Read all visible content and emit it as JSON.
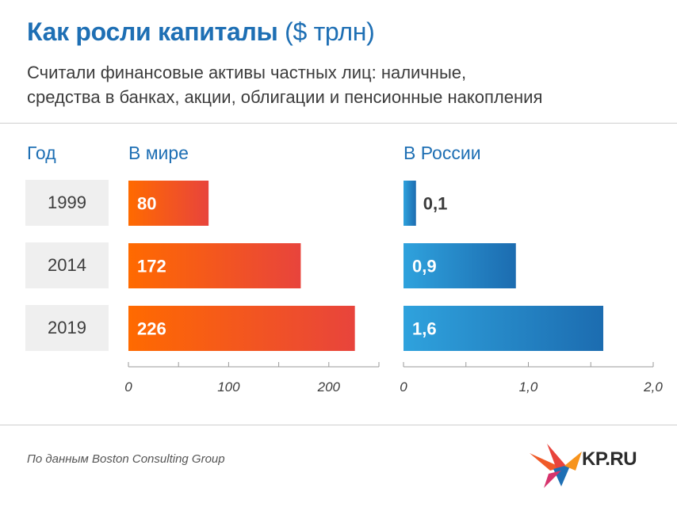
{
  "header": {
    "title": "Как росли капиталы",
    "title_unit": "($ трлн)",
    "subtitle_line1": "Считали финансовые активы частных лиц: наличные,",
    "subtitle_line2": "средства в банках, акции, облигации и пенсионные накопления"
  },
  "columns": {
    "year": "Год",
    "world": "В мире",
    "russia": "В России"
  },
  "chart_data": [
    {
      "type": "bar",
      "orientation": "horizontal",
      "title": "В мире",
      "categories": [
        "1999",
        "2014",
        "2019"
      ],
      "values": [
        80,
        172,
        226
      ],
      "value_labels": [
        "80",
        "172",
        "226"
      ],
      "xlim": [
        0,
        250
      ],
      "ticks": [
        0,
        100,
        200
      ],
      "tick_labels": [
        "0",
        "100",
        "200"
      ],
      "minor_ticks": [
        0,
        50,
        100,
        150,
        200,
        250
      ],
      "grid": false
    },
    {
      "type": "bar",
      "orientation": "horizontal",
      "title": "В России",
      "categories": [
        "1999",
        "2014",
        "2019"
      ],
      "values": [
        0.1,
        0.9,
        1.6
      ],
      "value_labels": [
        "0,1",
        "0,9",
        "1,6"
      ],
      "xlim": [
        0,
        2.0
      ],
      "ticks": [
        0,
        1.0,
        2.0
      ],
      "tick_labels": [
        "0",
        "1,0",
        "2,0"
      ],
      "minor_ticks": [
        0,
        0.5,
        1.0,
        1.5,
        2.0
      ],
      "grid": false
    }
  ],
  "colors": {
    "title": "#1e6fb4",
    "world_bar_start": "#ff6a00",
    "world_bar_end": "#e8443c",
    "russia_bar_start": "#2fa2dd",
    "russia_bar_end": "#1c6cb0",
    "year_box": "#efefef"
  },
  "footer": {
    "source": "По данным Boston Consulting Group",
    "logo": "KP.RU",
    "logo_icon": "kp-bird-logo-icon"
  }
}
